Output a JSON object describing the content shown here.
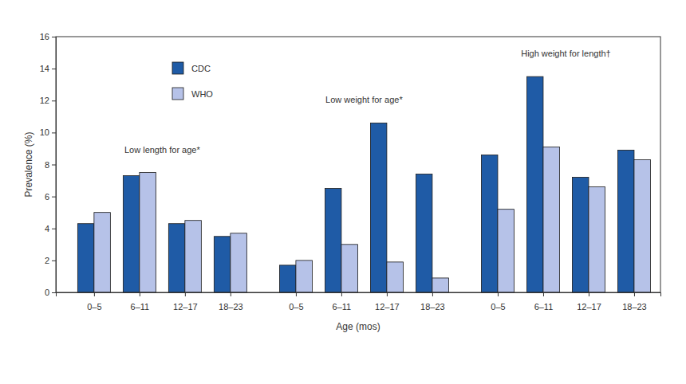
{
  "chart_data": {
    "type": "bar",
    "x_label": "Age (mos)",
    "y_label": "Prevalence (%)",
    "categories": [
      "0–5",
      "6–11",
      "12–17",
      "18–23",
      "0–5",
      "6–11",
      "12–17",
      "18–23",
      "0–5",
      "6–11",
      "12–17",
      "18–23"
    ],
    "annotations": [
      "Low length for age*",
      "Low weight for age*",
      "High weight for length†"
    ],
    "series": [
      {
        "name": "CDC",
        "color": "#1f5ba6",
        "values": [
          4.3,
          7.3,
          4.3,
          3.5,
          1.7,
          6.5,
          10.6,
          7.4,
          8.6,
          13.5,
          7.2,
          8.9
        ]
      },
      {
        "name": "WHO",
        "color": "#b6c2e8",
        "values": [
          5.0,
          7.5,
          4.5,
          3.7,
          2.0,
          3.0,
          1.9,
          0.9,
          5.2,
          9.1,
          6.6,
          8.3
        ]
      }
    ],
    "ylim": [
      0,
      16
    ],
    "yticks": [
      0,
      2,
      4,
      6,
      8,
      10,
      12,
      14,
      16
    ],
    "grid": false,
    "legend": "upper left"
  }
}
